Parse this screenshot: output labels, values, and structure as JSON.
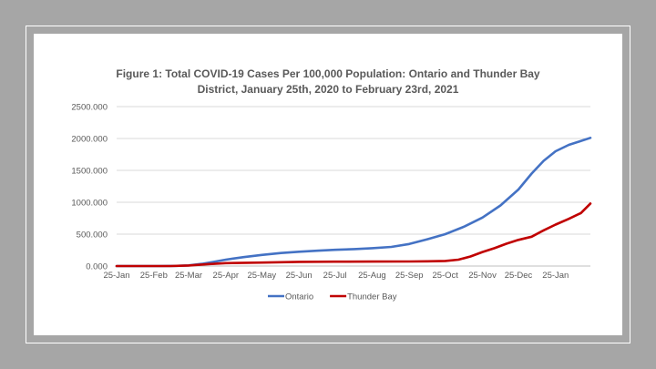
{
  "chart_data": {
    "type": "line",
    "title_line1": "Figure 1: Total COVID-19 Cases Per 100,000 Population: Ontario and Thunder Bay",
    "title_line2": "District, January 25th, 2020 to February 23rd, 2021",
    "xlabel": "",
    "ylabel": "",
    "ylim": [
      0,
      2500
    ],
    "y_ticks": [
      "0.000",
      "500.000",
      "1000.000",
      "1500.000",
      "2000.000",
      "2500.000"
    ],
    "x_ticks": [
      "25-Jan",
      "25-Feb",
      "25-Mar",
      "25-Apr",
      "25-May",
      "25-Jun",
      "25-Jul",
      "25-Aug",
      "25-Sep",
      "25-Oct",
      "25-Nov",
      "25-Dec",
      "25-Jan"
    ],
    "x_tick_dates": [
      "2020-01-25",
      "2020-02-25",
      "2020-03-25",
      "2020-04-25",
      "2020-05-25",
      "2020-06-25",
      "2020-07-25",
      "2020-08-25",
      "2020-09-25",
      "2020-10-25",
      "2020-11-25",
      "2020-12-25",
      "2021-01-25"
    ],
    "x_range": [
      "2020-01-25",
      "2021-02-23"
    ],
    "grid": true,
    "legend_position": "bottom",
    "series": [
      {
        "name": "Ontario",
        "color": "#4472c4",
        "points": [
          [
            "2020-01-25",
            0
          ],
          [
            "2020-03-01",
            0
          ],
          [
            "2020-03-15",
            3
          ],
          [
            "2020-03-25",
            10
          ],
          [
            "2020-04-05",
            35
          ],
          [
            "2020-04-15",
            65
          ],
          [
            "2020-04-25",
            100
          ],
          [
            "2020-05-10",
            140
          ],
          [
            "2020-05-25",
            175
          ],
          [
            "2020-06-10",
            205
          ],
          [
            "2020-06-25",
            225
          ],
          [
            "2020-07-10",
            240
          ],
          [
            "2020-07-25",
            255
          ],
          [
            "2020-08-10",
            265
          ],
          [
            "2020-08-25",
            280
          ],
          [
            "2020-09-10",
            300
          ],
          [
            "2020-09-25",
            345
          ],
          [
            "2020-10-10",
            420
          ],
          [
            "2020-10-25",
            500
          ],
          [
            "2020-11-10",
            620
          ],
          [
            "2020-11-25",
            760
          ],
          [
            "2020-12-10",
            950
          ],
          [
            "2020-12-25",
            1200
          ],
          [
            "2021-01-05",
            1450
          ],
          [
            "2021-01-15",
            1650
          ],
          [
            "2021-01-25",
            1800
          ],
          [
            "2021-02-05",
            1900
          ],
          [
            "2021-02-15",
            1960
          ],
          [
            "2021-02-23",
            2010
          ]
        ]
      },
      {
        "name": "Thunder Bay",
        "color": "#c00000",
        "points": [
          [
            "2020-01-25",
            0
          ],
          [
            "2020-03-10",
            0
          ],
          [
            "2020-03-25",
            8
          ],
          [
            "2020-04-10",
            30
          ],
          [
            "2020-04-25",
            45
          ],
          [
            "2020-05-25",
            55
          ],
          [
            "2020-06-25",
            65
          ],
          [
            "2020-07-25",
            68
          ],
          [
            "2020-08-25",
            70
          ],
          [
            "2020-09-25",
            72
          ],
          [
            "2020-10-10",
            75
          ],
          [
            "2020-10-25",
            80
          ],
          [
            "2020-11-05",
            100
          ],
          [
            "2020-11-15",
            150
          ],
          [
            "2020-11-25",
            220
          ],
          [
            "2020-12-05",
            280
          ],
          [
            "2020-12-15",
            350
          ],
          [
            "2020-12-25",
            410
          ],
          [
            "2021-01-05",
            460
          ],
          [
            "2021-01-15",
            560
          ],
          [
            "2021-01-25",
            650
          ],
          [
            "2021-02-05",
            740
          ],
          [
            "2021-02-15",
            830
          ],
          [
            "2021-02-23",
            980
          ]
        ]
      }
    ]
  }
}
